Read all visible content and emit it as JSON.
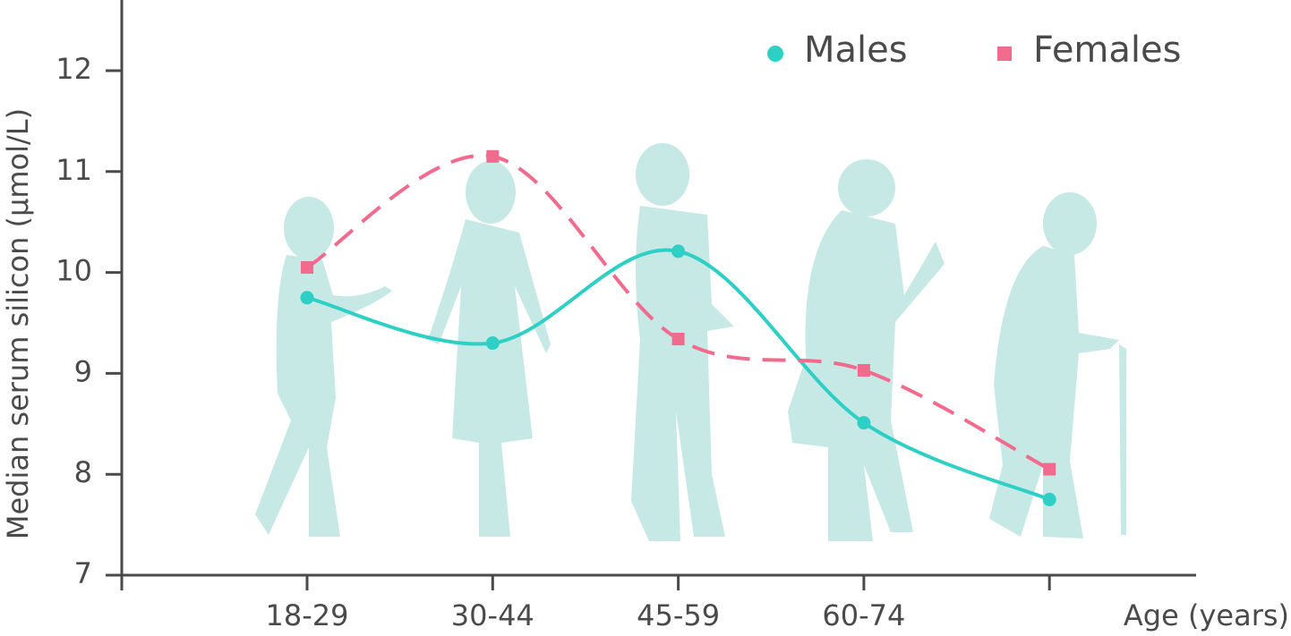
{
  "chart_data": {
    "type": "line",
    "y_label": "Median serum silicon (µmol/L)",
    "x_label": "Age (years)",
    "categories": [
      "18-29",
      "30-44",
      "45-59",
      "60-74",
      null
    ],
    "series": [
      {
        "name": "Males",
        "color": "#2ecfc4",
        "marker": "circle",
        "dashed": false,
        "values": [
          9.75,
          9.3,
          10.21,
          8.51,
          7.75
        ]
      },
      {
        "name": "Females",
        "color": "#f26b8f",
        "marker": "square",
        "dashed": true,
        "values": [
          10.05,
          11.15,
          9.34,
          9.03,
          8.05
        ]
      }
    ],
    "ylim": [
      7,
      12.7
    ],
    "yticks": [
      7,
      8,
      9,
      10,
      11,
      12
    ],
    "legend": "top-right",
    "smooth": true
  }
}
